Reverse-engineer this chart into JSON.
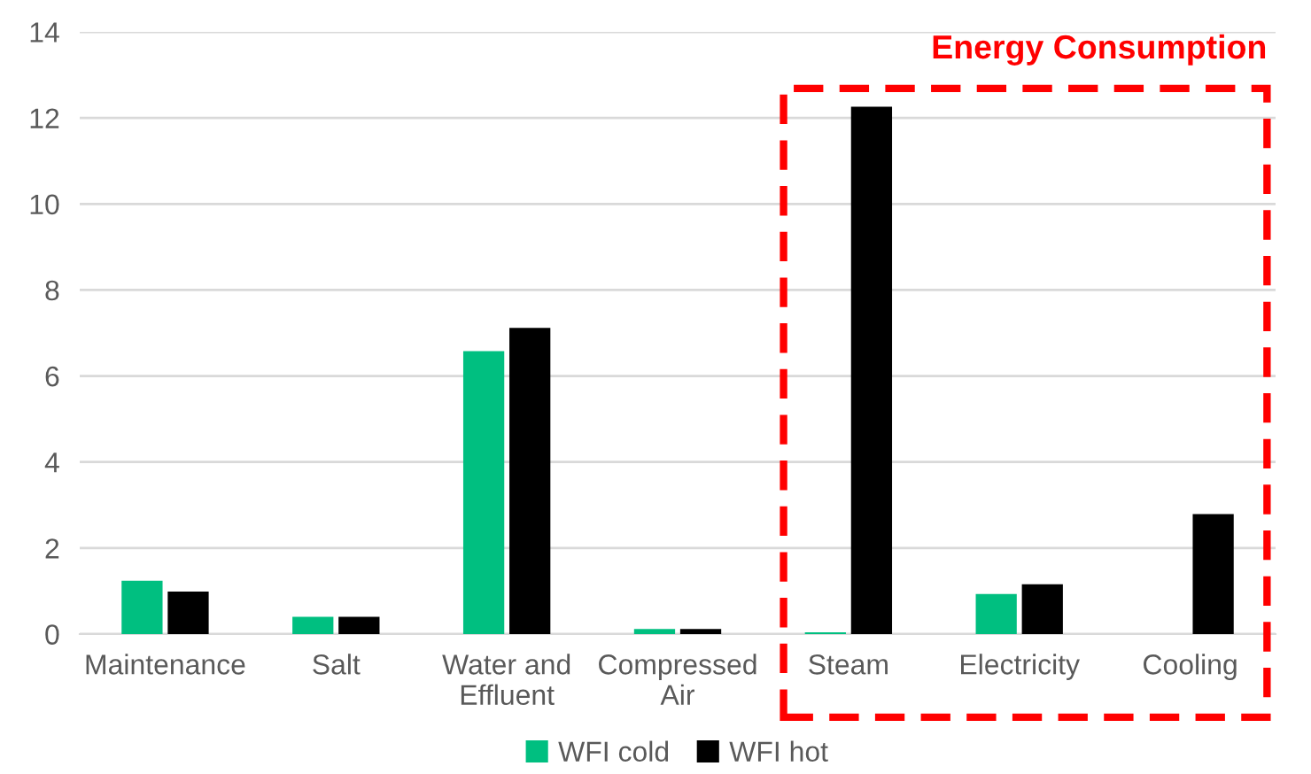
{
  "chart_data": {
    "type": "bar",
    "categories": [
      "Maintenance",
      "Salt",
      "Water and\nEffluent",
      "Compressed\nAir",
      "Steam",
      "Electricity",
      "Cooling"
    ],
    "series": [
      {
        "name": "WFI cold",
        "color": "#00bf80",
        "values": [
          1.24,
          0.4,
          6.58,
          0.12,
          0.04,
          0.93,
          null
        ]
      },
      {
        "name": "WFI hot",
        "color": "#000000",
        "values": [
          0.99,
          0.4,
          7.12,
          0.12,
          12.26,
          1.16,
          2.79
        ]
      }
    ],
    "ylim": [
      0,
      14
    ],
    "yticks": [
      0,
      2,
      4,
      6,
      8,
      10,
      12,
      14
    ],
    "grid": "y",
    "legend": "bottom",
    "annotations": [
      "Energy Consumption"
    ]
  }
}
